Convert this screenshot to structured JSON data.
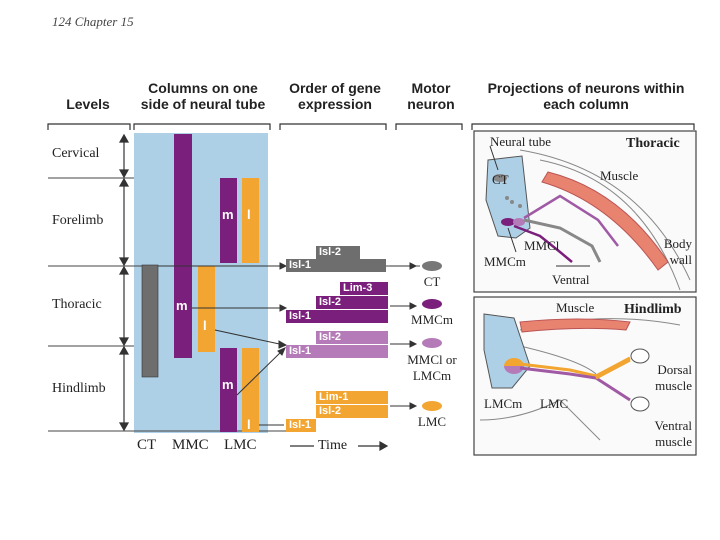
{
  "page_header": "124 Chapter 15",
  "headers": {
    "levels": "Levels",
    "columns": "Columns on one side of neural tube",
    "order": "Order of gene expression",
    "motor": "Motor neuron",
    "projections": "Projections of neurons within each column"
  },
  "levels": [
    "Cervical",
    "Forelimb",
    "Thoracic",
    "Hindlimb"
  ],
  "column_labels": [
    "CT",
    "MMC",
    "LMC"
  ],
  "column_letters": {
    "m1": "m",
    "l1": "l",
    "m2": "m",
    "l2": "l",
    "m3": "m",
    "l3": "l"
  },
  "time_label": "Time",
  "genes": {
    "row1": [
      "Isl-2",
      "Isl-1"
    ],
    "row2": [
      "Lim-3",
      "Isl-2",
      "Isl-1"
    ],
    "row3": [
      "Isl-2",
      "Isl-1"
    ],
    "row4": [
      "Lim-1",
      "Isl-2",
      "Isl-1"
    ]
  },
  "motor_neurons": {
    "ct": "CT",
    "mmcm": "MMCm",
    "mmcl": "MMCl or LMCm",
    "lmc": "LMC"
  },
  "thoracic_panel": {
    "title": "Thoracic",
    "neural_tube": "Neural tube",
    "ct": "CT",
    "muscle": "Muscle",
    "mmcl": "MMCl",
    "mmcm": "MMCm",
    "ventral": "Ventral",
    "body_wall": "Body wall"
  },
  "hindlimb_panel": {
    "title": "Hindlimb",
    "muscle": "Muscle",
    "dorsal_muscle": "Dorsal muscle",
    "ventral_muscle": "Ventral muscle",
    "lmcm": "LMCm",
    "lmc": "LMC"
  },
  "colors": {
    "tube_blue": "#aed0e6",
    "ct_gray": "#6e6e6e",
    "mmc_purple": "#7b1f7c",
    "lav": "#b57ab8",
    "lmc_orange": "#f2a531",
    "muscle_salmon": "#e8836f"
  }
}
